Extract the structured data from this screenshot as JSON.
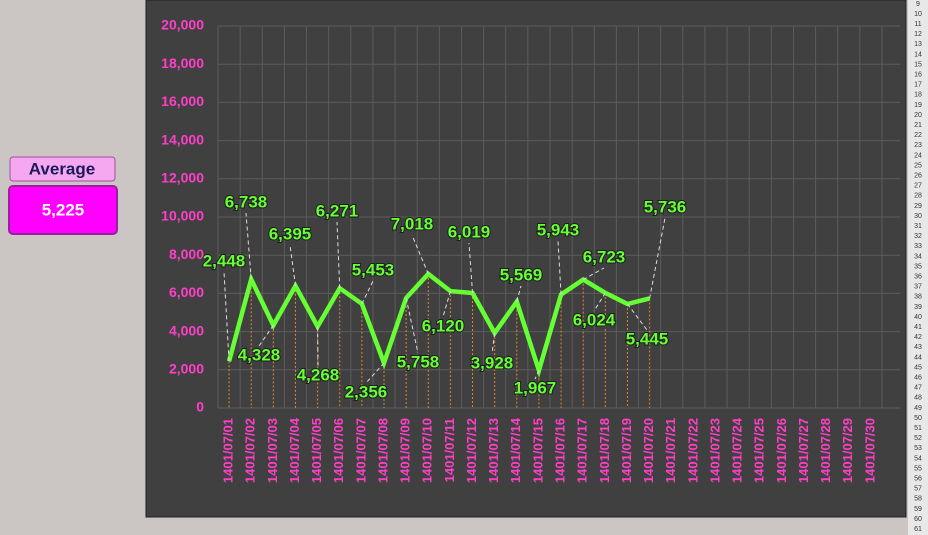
{
  "average": {
    "label": "Average",
    "value": "5,225"
  },
  "row_numbers": [
    "9",
    "10",
    "11",
    "12",
    "13",
    "14",
    "15",
    "16",
    "17",
    "18",
    "19",
    "20",
    "21",
    "22",
    "23",
    "24",
    "25",
    "26",
    "27",
    "28",
    "29",
    "30",
    "31",
    "32",
    "33",
    "34",
    "35",
    "36",
    "37",
    "38",
    "39",
    "40",
    "41",
    "42",
    "43",
    "44",
    "45",
    "46",
    "47",
    "48",
    "49",
    "50",
    "51",
    "52",
    "53",
    "54",
    "55",
    "56",
    "57",
    "58",
    "59",
    "60",
    "61"
  ],
  "chart_data": {
    "type": "line",
    "categories": [
      "1401/07/01",
      "1401/07/02",
      "1401/07/03",
      "1401/07/04",
      "1401/07/05",
      "1401/07/06",
      "1401/07/07",
      "1401/07/08",
      "1401/07/09",
      "1401/07/10",
      "1401/07/11",
      "1401/07/12",
      "1401/07/13",
      "1401/07/14",
      "1401/07/15",
      "1401/07/16",
      "1401/07/17",
      "1401/07/18",
      "1401/07/19",
      "1401/07/20",
      "1401/07/21",
      "1401/07/22",
      "1401/07/23",
      "1401/07/24",
      "1401/07/25",
      "1401/07/26",
      "1401/07/27",
      "1401/07/28",
      "1401/07/29",
      "1401/07/30"
    ],
    "values": [
      2448,
      6738,
      4328,
      6395,
      4268,
      6271,
      5453,
      2356,
      5758,
      7018,
      6120,
      6019,
      3928,
      5569,
      1967,
      5943,
      6723,
      6024,
      5445,
      5736,
      null,
      null,
      null,
      null,
      null,
      null,
      null,
      null,
      null,
      null
    ],
    "value_labels": [
      "2,448",
      "6,738",
      "4,328",
      "6,395",
      "4,268",
      "6,271",
      "5,453",
      "2,356",
      "5,758",
      "7,018",
      "6,120",
      "6,019",
      "3,928",
      "5,569",
      "1,967",
      "5,943",
      "6,723",
      "6,024",
      "5,445",
      "5,736",
      null,
      null,
      null,
      null,
      null,
      null,
      null,
      null,
      null,
      null
    ],
    "color": "#66ff33",
    "ylim": [
      0,
      20000
    ],
    "yticks": [
      0,
      {
        "value": 2000,
        "label": "2,000"
      },
      {
        "value": 4000,
        "label": "4,000"
      },
      {
        "value": 6000,
        "label": "6,000"
      },
      {
        "value": 8000,
        "label": "8,000"
      },
      {
        "value": 10000,
        "label": "10,000"
      },
      {
        "value": 12000,
        "label": "12,000"
      },
      {
        "value": 14000,
        "label": "14,000"
      },
      {
        "value": 16000,
        "label": "16,000"
      },
      {
        "value": 18000,
        "label": "18,000"
      },
      {
        "value": 20000,
        "label": "20,000"
      }
    ],
    "grid": true
  }
}
